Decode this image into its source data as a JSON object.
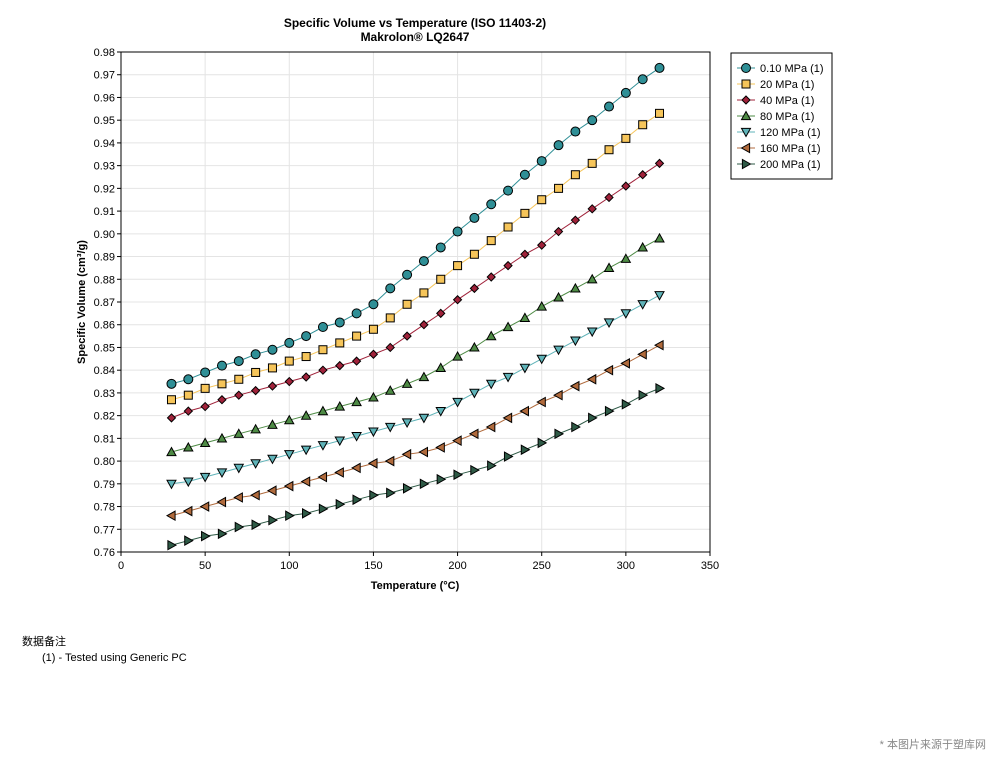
{
  "chart_data": {
    "type": "line",
    "title": "Specific Volume vs Temperature (ISO 11403-2)",
    "subtitle": "Makrolon® LQ2647",
    "xlabel": "Temperature (°C)",
    "ylabel": "Specific Volume (cm³/g)",
    "xlim": [
      0,
      350
    ],
    "ylim": [
      0.76,
      0.98
    ],
    "xticks": [
      0,
      50,
      100,
      150,
      200,
      250,
      300,
      350
    ],
    "yticks": [
      0.76,
      0.77,
      0.78,
      0.79,
      0.8,
      0.81,
      0.82,
      0.83,
      0.84,
      0.85,
      0.86,
      0.87,
      0.88,
      0.89,
      0.9,
      0.91,
      0.92,
      0.93,
      0.94,
      0.95,
      0.96,
      0.97,
      0.98
    ],
    "grid": true,
    "legend_position": "right",
    "x": [
      30,
      40,
      50,
      60,
      70,
      80,
      90,
      100,
      110,
      120,
      130,
      140,
      150,
      160,
      170,
      180,
      190,
      200,
      210,
      220,
      230,
      240,
      250,
      260,
      270,
      280,
      290,
      300,
      310,
      320
    ],
    "series": [
      {
        "name": "0.10 MPa (1)",
        "color": "#2f8f96",
        "marker": "circle",
        "values": [
          0.834,
          0.836,
          0.839,
          0.842,
          0.844,
          0.847,
          0.849,
          0.852,
          0.855,
          0.859,
          0.861,
          0.865,
          0.869,
          0.876,
          0.882,
          0.888,
          0.894,
          0.901,
          0.907,
          0.913,
          0.919,
          0.926,
          0.932,
          0.939,
          0.945,
          0.95,
          0.956,
          0.962,
          0.968,
          0.973
        ]
      },
      {
        "name": "20 MPa (1)",
        "color": "#f6c55a",
        "marker": "square",
        "values": [
          0.827,
          0.829,
          0.832,
          0.834,
          0.836,
          0.839,
          0.841,
          0.844,
          0.846,
          0.849,
          0.852,
          0.855,
          0.858,
          0.863,
          0.869,
          0.874,
          0.88,
          0.886,
          0.891,
          0.897,
          0.903,
          0.909,
          0.915,
          0.92,
          0.926,
          0.931,
          0.937,
          0.942,
          0.948,
          0.953
        ]
      },
      {
        "name": "40 MPa (1)",
        "color": "#a0223a",
        "marker": "diamond",
        "values": [
          0.819,
          0.822,
          0.824,
          0.827,
          0.829,
          0.831,
          0.833,
          0.835,
          0.837,
          0.84,
          0.842,
          0.844,
          0.847,
          0.85,
          0.855,
          0.86,
          0.865,
          0.871,
          0.876,
          0.881,
          0.886,
          0.891,
          0.895,
          0.901,
          0.906,
          0.911,
          0.916,
          0.921,
          0.926,
          0.931
        ]
      },
      {
        "name": "80 MPa (1)",
        "color": "#4e8b45",
        "marker": "triangle-up",
        "values": [
          0.804,
          0.806,
          0.808,
          0.81,
          0.812,
          0.814,
          0.816,
          0.818,
          0.82,
          0.822,
          0.824,
          0.826,
          0.828,
          0.831,
          0.834,
          0.837,
          0.841,
          0.846,
          0.85,
          0.855,
          0.859,
          0.863,
          0.868,
          0.872,
          0.876,
          0.88,
          0.885,
          0.889,
          0.894,
          0.898
        ]
      },
      {
        "name": "120 MPa (1)",
        "color": "#5fb3b8",
        "marker": "triangle-down",
        "values": [
          0.79,
          0.791,
          0.793,
          0.795,
          0.797,
          0.799,
          0.801,
          0.803,
          0.805,
          0.807,
          0.809,
          0.811,
          0.813,
          0.815,
          0.817,
          0.819,
          0.822,
          0.826,
          0.83,
          0.834,
          0.837,
          0.841,
          0.845,
          0.849,
          0.853,
          0.857,
          0.861,
          0.865,
          0.869,
          0.873
        ]
      },
      {
        "name": "160 MPa (1)",
        "color": "#b06a3c",
        "marker": "triangle-left",
        "values": [
          0.776,
          0.778,
          0.78,
          0.782,
          0.784,
          0.785,
          0.787,
          0.789,
          0.791,
          0.793,
          0.795,
          0.797,
          0.799,
          0.8,
          0.803,
          0.804,
          0.806,
          0.809,
          0.812,
          0.815,
          0.819,
          0.822,
          0.826,
          0.829,
          0.833,
          0.836,
          0.84,
          0.843,
          0.847,
          0.851
        ]
      },
      {
        "name": "200 MPa (1)",
        "color": "#2e5a46",
        "marker": "triangle-right",
        "values": [
          0.763,
          0.765,
          0.767,
          0.768,
          0.771,
          0.772,
          0.774,
          0.776,
          0.777,
          0.779,
          0.781,
          0.783,
          0.785,
          0.786,
          0.788,
          0.79,
          0.792,
          0.794,
          0.796,
          0.798,
          0.802,
          0.805,
          0.808,
          0.812,
          0.815,
          0.819,
          0.822,
          0.825,
          0.829,
          0.832
        ]
      }
    ]
  },
  "notes": {
    "title": "数据备注",
    "item": "(1) - Tested using Generic PC"
  },
  "watermark": "* 本图片来源于塑库网"
}
